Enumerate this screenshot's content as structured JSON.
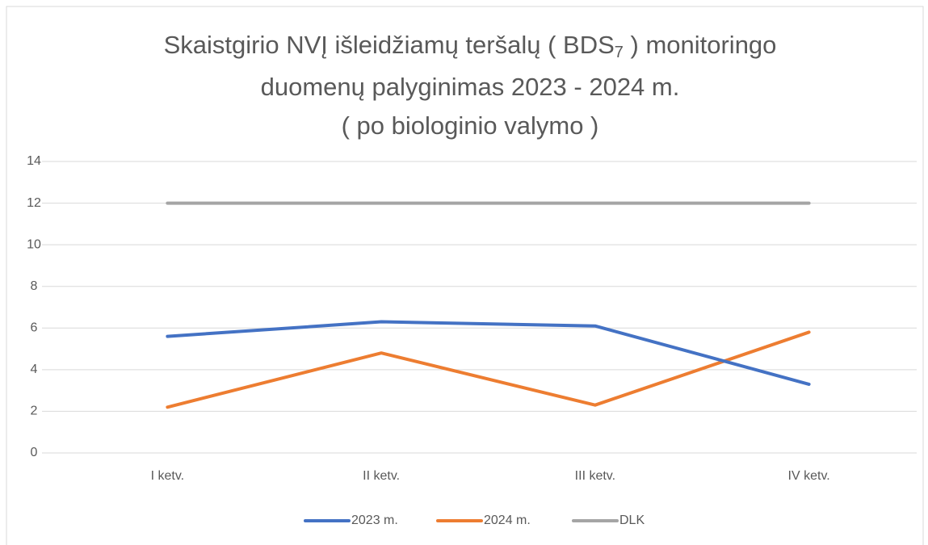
{
  "chart_data": {
    "type": "line",
    "title": [
      "Skaistgirio NVĮ išleidžiamų teršalų ( BDS",
      "7",
      " ) monitoringo",
      "duomenų palyginimas  2023 - 2024 m.",
      "( po biologinio valymo )"
    ],
    "categories": [
      "I ketv.",
      "II ketv.",
      "III ketv.",
      "IV ketv."
    ],
    "series": [
      {
        "name": "2023 m.",
        "color": "#4472c4",
        "values": [
          5.6,
          6.3,
          6.1,
          3.3
        ]
      },
      {
        "name": "2024 m.",
        "color": "#ed7d31",
        "values": [
          2.2,
          4.8,
          2.3,
          5.8
        ]
      },
      {
        "name": "DLK",
        "color": "#a5a5a5",
        "values": [
          12,
          12,
          12,
          12
        ]
      }
    ],
    "ylim": [
      0,
      14
    ],
    "yticks": [
      0,
      2,
      4,
      6,
      8,
      10,
      12,
      14
    ],
    "grid": true,
    "legend": "bottom"
  }
}
